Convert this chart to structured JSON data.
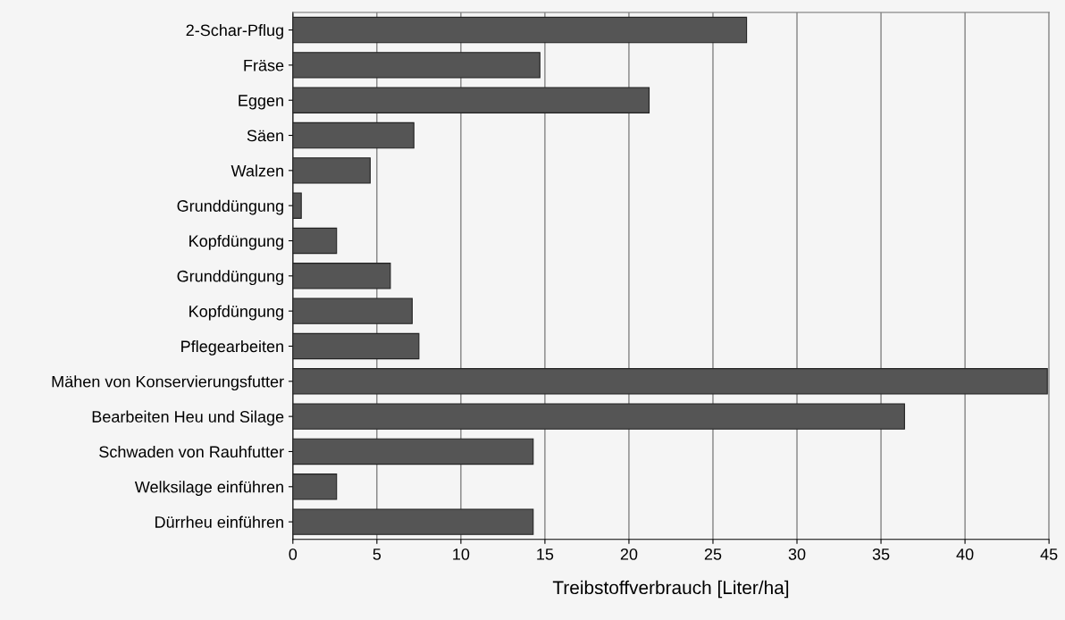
{
  "chart_data": {
    "type": "bar",
    "orientation": "horizontal",
    "xlabel": "Treibstoffverbrauch [Liter/ha]",
    "categories": [
      "2-Schar-Pflug",
      "Fräse",
      "Eggen",
      "Säen",
      "Walzen",
      "Grunddüngung",
      "Kopfdüngung",
      "Grunddüngung",
      "Kopfdüngung",
      "Pflegearbeiten",
      "Mähen von Konservierungsfutter",
      "Bearbeiten Heu und Silage",
      "Schwaden von Rauhfutter",
      "Welksilage einführen",
      "Dürrheu einführen"
    ],
    "values": [
      27.0,
      14.7,
      21.2,
      7.2,
      4.6,
      0.5,
      2.6,
      5.8,
      7.1,
      7.5,
      44.9,
      36.4,
      14.3,
      2.6,
      14.3
    ],
    "color": "#555555",
    "xlim": [
      0,
      45
    ],
    "xticks": [
      0,
      5,
      10,
      15,
      20,
      25,
      30,
      35,
      40,
      45
    ],
    "grid": "x"
  }
}
